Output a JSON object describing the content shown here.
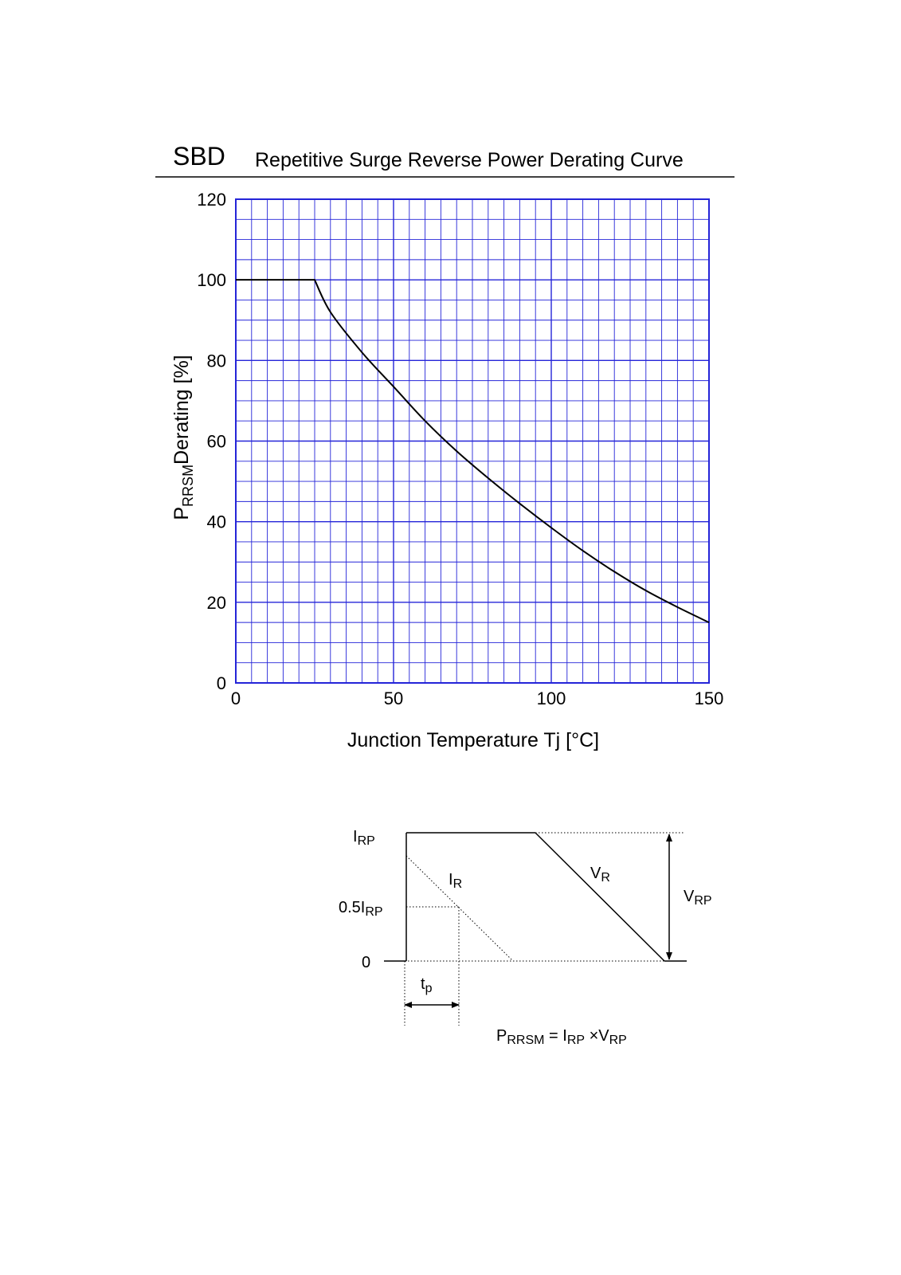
{
  "header": {
    "prefix": "SBD",
    "title": "Repetitive Surge Reverse Power Derating Curve"
  },
  "colors": {
    "grid": "#2424d8",
    "curve": "#000000",
    "rule": "#000000"
  },
  "chart_data": {
    "type": "line",
    "xlabel": "Junction Temperature Tj [°C]",
    "ylabel": {
      "main": "P",
      "sub": "RRSM",
      "rest": "Derating [%]"
    },
    "xlim": [
      0,
      150
    ],
    "ylim": [
      0,
      120
    ],
    "x_ticks": [
      0,
      50,
      100,
      150
    ],
    "y_ticks": [
      0,
      20,
      40,
      60,
      80,
      100,
      120
    ],
    "x_minor_step": 5,
    "y_minor_step": 5,
    "grid": true,
    "series": [
      {
        "x": [
          0,
          25,
          30,
          40,
          50,
          60,
          70,
          80,
          90,
          100,
          110,
          120,
          130,
          140,
          150
        ],
        "values": [
          100,
          100,
          92,
          82,
          73.5,
          65,
          57.5,
          50.8,
          44.5,
          38.5,
          32.8,
          27.6,
          22.9,
          18.8,
          15
        ]
      }
    ]
  },
  "waveform": {
    "labels": {
      "irp": {
        "main": "I",
        "sub": "RP"
      },
      "half_irp": {
        "main": "0.5I",
        "sub": "RP"
      },
      "zero": "0",
      "ir": {
        "main": "I",
        "sub": "R"
      },
      "vr": {
        "main": "V",
        "sub": "R"
      },
      "vrp": {
        "main": "V",
        "sub": "RP"
      },
      "tp": {
        "main": "t",
        "sub": "p"
      }
    },
    "formula": {
      "p": "P",
      "p_sub": "RRSM",
      "eq": " = I",
      "i_sub": "RP",
      "times": " ×V",
      "v_sub": "RP"
    }
  }
}
